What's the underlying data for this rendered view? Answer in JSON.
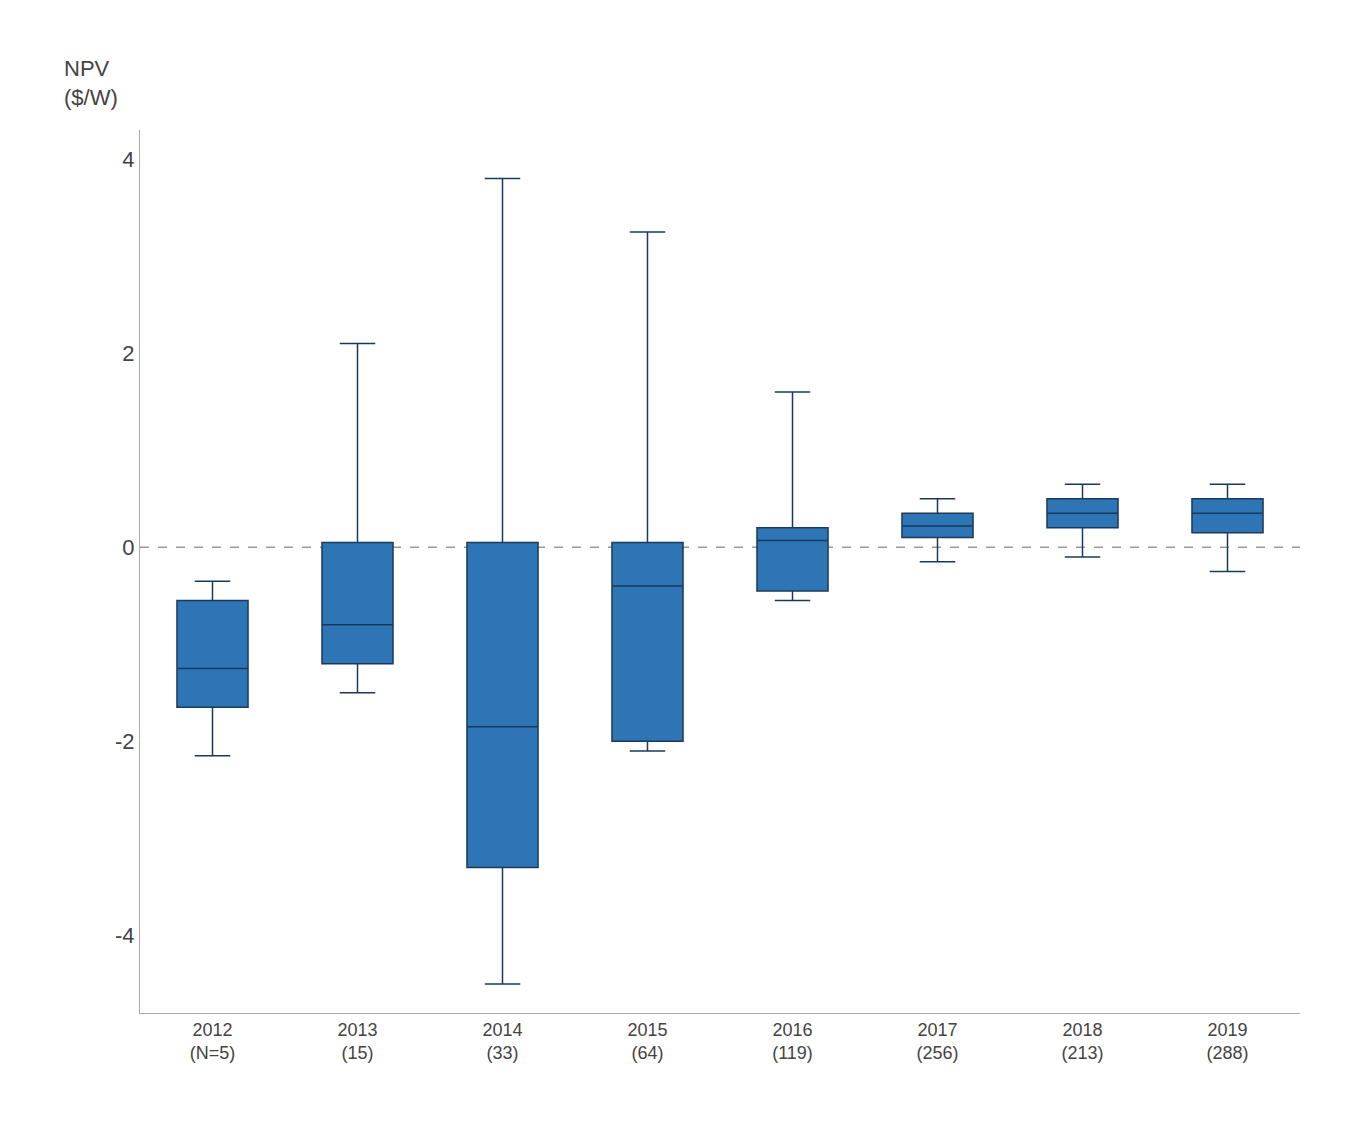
{
  "chart_data": {
    "type": "box",
    "categories": [
      "2012\n(N=5)",
      "2013\n(15)",
      "2014\n(33)",
      "2015\n(64)",
      "2016\n(119)",
      "2017\n(256)",
      "2018\n(213)",
      "2019\n(288)"
    ],
    "boxes": [
      {
        "whislo": -2.15,
        "q1": -1.65,
        "med": -1.25,
        "q3": -0.55,
        "whishi": -0.35
      },
      {
        "whislo": -1.5,
        "q1": -1.2,
        "med": -0.8,
        "q3": 0.05,
        "whishi": 2.1
      },
      {
        "whislo": -4.5,
        "q1": -3.3,
        "med": -1.85,
        "q3": 0.05,
        "whishi": 3.8
      },
      {
        "whislo": -2.1,
        "q1": -2.0,
        "med": -0.4,
        "q3": 0.05,
        "whishi": 3.25
      },
      {
        "whislo": -0.55,
        "q1": -0.45,
        "med": 0.07,
        "q3": 0.2,
        "whishi": 1.6
      },
      {
        "whislo": -0.15,
        "q1": 0.1,
        "med": 0.22,
        "q3": 0.35,
        "whishi": 0.5
      },
      {
        "whislo": -0.1,
        "q1": 0.2,
        "med": 0.35,
        "q3": 0.5,
        "whishi": 0.65
      },
      {
        "whislo": -0.25,
        "q1": 0.15,
        "med": 0.35,
        "q3": 0.5,
        "whishi": 0.65
      }
    ],
    "color": "#2E75B6",
    "ylabel": "NPV\n($/W)",
    "ylim": [
      -4.8,
      4.3
    ],
    "yticks": [
      -4,
      -2,
      0,
      2,
      4
    ],
    "reference_lines": [
      {
        "y": 0,
        "color": "#999999",
        "line_style": "dashed"
      }
    ],
    "grid": false
  }
}
